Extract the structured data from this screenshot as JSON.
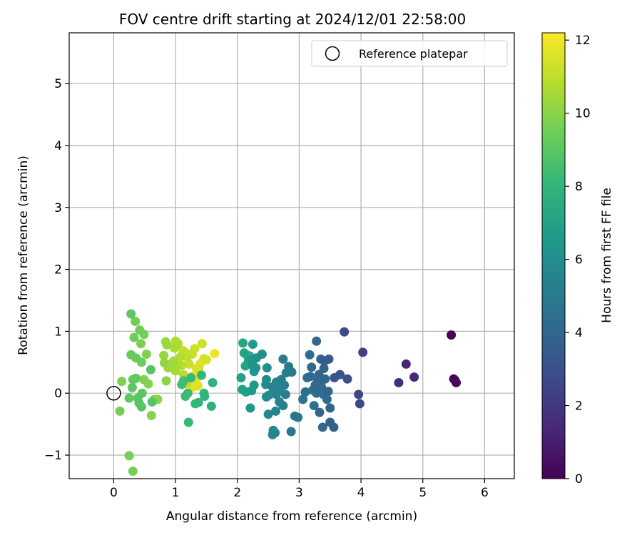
{
  "chart_data": {
    "type": "scatter",
    "title": "FOV centre drift starting at 2024/12/01 22:58:00",
    "xlabel": "Angular distance from reference (arcmin)",
    "ylabel": "Rotation from reference (arcmin)",
    "xlim": [
      -0.72,
      6.48
    ],
    "ylim": [
      -1.38,
      5.82
    ],
    "xticks": [
      0,
      1,
      2,
      3,
      4,
      5,
      6
    ],
    "xtick_labels": [
      "0",
      "1",
      "2",
      "3",
      "4",
      "5",
      "6"
    ],
    "yticks": [
      -1,
      0,
      1,
      2,
      3,
      4,
      5
    ],
    "ytick_labels": [
      "−1",
      "0",
      "1",
      "2",
      "3",
      "4",
      "5"
    ],
    "grid": true,
    "legend": {
      "position": "top-right",
      "entries": [
        "Reference platepar"
      ]
    },
    "colorbar": {
      "label": "Hours from first FF file",
      "range": [
        0,
        12.2
      ],
      "ticks": [
        0,
        2,
        4,
        6,
        8,
        10,
        12
      ],
      "tick_labels": [
        "0",
        "2",
        "4",
        "6",
        "8",
        "10",
        "12"
      ],
      "colormap": "viridis",
      "colors": [
        "#440154",
        "#482878",
        "#3e4989",
        "#31688e",
        "#26828e",
        "#1f9e89",
        "#35b779",
        "#6ece58",
        "#b5de2b",
        "#fde725"
      ]
    },
    "reference_point": {
      "x": 0,
      "y": 0,
      "series": "Reference platepar"
    },
    "series": [
      {
        "points": [
          [
            5.46,
            0.94,
            0.1
          ],
          [
            5.5,
            0.23,
            0.2
          ],
          [
            5.52,
            0.21,
            0.3
          ],
          [
            5.54,
            0.17,
            0.3
          ],
          [
            4.73,
            0.47,
            1.2
          ],
          [
            4.86,
            0.26,
            1.4
          ],
          [
            4.61,
            0.17,
            1.5
          ],
          [
            4.03,
            0.66,
            2.3
          ],
          [
            3.73,
            0.99,
            2.7
          ],
          [
            3.96,
            -0.02,
            2.6
          ],
          [
            3.98,
            -0.17,
            2.6
          ],
          [
            3.78,
            0.23,
            3.0
          ],
          [
            3.66,
            0.3,
            3.2
          ],
          [
            3.57,
            0.25,
            3.3
          ],
          [
            3.48,
            0.55,
            3.5
          ],
          [
            3.41,
            0.52,
            3.6
          ],
          [
            3.35,
            0.55,
            3.7
          ],
          [
            3.28,
            0.84,
            4.0
          ],
          [
            3.5,
            -0.47,
            3.8
          ],
          [
            3.56,
            -0.55,
            3.8
          ],
          [
            3.5,
            -0.24,
            3.9
          ],
          [
            3.38,
            -0.55,
            4.0
          ],
          [
            3.33,
            -0.31,
            4.0
          ],
          [
            3.47,
            0.03,
            4.0
          ],
          [
            3.42,
            0.23,
            4.0
          ],
          [
            3.32,
            0.3,
            4.1
          ],
          [
            3.26,
            0.13,
            4.1
          ],
          [
            3.2,
            0.42,
            4.2
          ],
          [
            3.18,
            0.27,
            4.3
          ],
          [
            3.17,
            0.62,
            4.4
          ],
          [
            3.13,
            0.25,
            4.4
          ],
          [
            3.36,
            0.1,
            4.2
          ],
          [
            3.45,
            -0.1,
            4.2
          ],
          [
            3.24,
            -0.2,
            4.5
          ],
          [
            3.1,
            0.02,
            4.5
          ],
          [
            3.06,
            -0.1,
            4.7
          ],
          [
            3.28,
            0.0,
            4.3
          ],
          [
            3.39,
            -0.02,
            4.3
          ],
          [
            3.3,
            0.2,
            4.2
          ],
          [
            3.4,
            0.4,
            4.0
          ],
          [
            3.22,
            0.05,
            4.4
          ],
          [
            2.93,
            -0.37,
            4.8
          ],
          [
            2.98,
            -0.39,
            4.8
          ],
          [
            2.87,
            -0.62,
            4.9
          ],
          [
            2.88,
            0.34,
            5.0
          ],
          [
            2.83,
            0.43,
            5.0
          ],
          [
            2.79,
            0.33,
            5.1
          ],
          [
            2.74,
            0.55,
            5.1
          ],
          [
            2.76,
            0.13,
            5.2
          ],
          [
            2.71,
            0.22,
            5.2
          ],
          [
            2.78,
            -0.02,
            5.3
          ],
          [
            2.74,
            -0.2,
            5.3
          ],
          [
            2.68,
            -0.14,
            5.4
          ],
          [
            2.63,
            -0.02,
            5.4
          ],
          [
            2.62,
            -0.29,
            5.5
          ],
          [
            2.58,
            -0.6,
            5.6
          ],
          [
            2.57,
            -0.67,
            5.6
          ],
          [
            2.61,
            -0.64,
            5.6
          ],
          [
            2.5,
            -0.34,
            5.7
          ],
          [
            2.57,
            0.1,
            5.6
          ],
          [
            2.63,
            0.18,
            5.6
          ],
          [
            2.68,
            0.05,
            5.5
          ],
          [
            2.51,
            -0.03,
            5.8
          ],
          [
            2.47,
            -0.06,
            5.8
          ],
          [
            2.46,
            0.14,
            5.9
          ],
          [
            2.47,
            0.22,
            5.9
          ],
          [
            2.48,
            0.41,
            6.0
          ],
          [
            2.4,
            0.63,
            6.1
          ],
          [
            2.31,
            0.57,
            6.2
          ],
          [
            2.25,
            0.45,
            6.3
          ],
          [
            2.3,
            0.41,
            6.3
          ],
          [
            2.27,
            0.35,
            6.4
          ],
          [
            2.23,
            0.53,
            6.4
          ],
          [
            2.21,
            -0.24,
            6.5
          ],
          [
            2.23,
            0.04,
            6.6
          ],
          [
            2.27,
            0.13,
            6.6
          ],
          [
            2.25,
            0.79,
            6.7
          ],
          [
            2.08,
            0.06,
            6.9
          ],
          [
            2.14,
            0.02,
            6.9
          ],
          [
            2.06,
            0.25,
            7.0
          ],
          [
            2.13,
            0.44,
            7.0
          ],
          [
            2.18,
            0.52,
            7.1
          ],
          [
            2.11,
            0.65,
            7.1
          ],
          [
            2.15,
            0.62,
            7.2
          ],
          [
            2.09,
            0.81,
            7.2
          ],
          [
            2.2,
            0.6,
            7.3
          ],
          [
            1.6,
            0.17,
            7.8
          ],
          [
            1.58,
            -0.21,
            7.8
          ],
          [
            1.47,
            -0.05,
            7.9
          ],
          [
            1.46,
            0.0,
            8.0
          ],
          [
            1.42,
            0.29,
            8.0
          ],
          [
            1.37,
            -0.15,
            8.1
          ],
          [
            1.32,
            -0.17,
            8.1
          ],
          [
            1.25,
            0.25,
            8.2
          ],
          [
            1.21,
            -0.47,
            8.2
          ],
          [
            1.2,
            0.0,
            8.3
          ],
          [
            1.16,
            -0.05,
            8.3
          ],
          [
            1.1,
            0.14,
            8.4
          ],
          [
            1.13,
            0.2,
            8.4
          ],
          [
            0.28,
            1.28,
            9.1
          ],
          [
            0.62,
            -0.14,
            8.9
          ],
          [
            0.6,
            0.38,
            8.9
          ],
          [
            0.45,
            -0.22,
            9.0
          ],
          [
            0.41,
            -0.16,
            9.0
          ],
          [
            0.39,
            -0.08,
            9.0
          ],
          [
            0.46,
            0.0,
            9.0
          ],
          [
            0.3,
            0.09,
            9.1
          ],
          [
            0.25,
            -0.08,
            9.1
          ],
          [
            0.36,
            0.24,
            9.2
          ],
          [
            0.31,
            0.22,
            9.2
          ],
          [
            0.28,
            0.62,
            9.3
          ],
          [
            0.36,
            0.57,
            9.3
          ],
          [
            0.45,
            0.5,
            9.4
          ],
          [
            0.33,
            0.9,
            9.4
          ],
          [
            0.42,
            1.02,
            9.5
          ],
          [
            0.35,
            1.16,
            9.5
          ],
          [
            0.49,
            0.95,
            9.6
          ],
          [
            0.1,
            -0.29,
            9.6
          ],
          [
            0.25,
            -1.01,
            9.6
          ],
          [
            0.31,
            -1.26,
            9.6
          ],
          [
            0.13,
            0.19,
            9.7
          ],
          [
            0.44,
            0.8,
            9.7
          ],
          [
            0.53,
            0.63,
            9.8
          ],
          [
            0.49,
            0.22,
            9.8
          ],
          [
            0.56,
            0.15,
            9.9
          ],
          [
            0.61,
            -0.36,
            9.9
          ],
          [
            0.66,
            -0.1,
            10.0
          ],
          [
            0.71,
            -0.1,
            10.0
          ],
          [
            0.85,
            0.2,
            10.1
          ],
          [
            0.82,
            0.49,
            10.2
          ],
          [
            0.81,
            0.61,
            10.2
          ],
          [
            0.86,
            0.78,
            10.3
          ],
          [
            0.84,
            0.83,
            10.3
          ],
          [
            0.88,
            0.41,
            10.4
          ],
          [
            0.93,
            0.47,
            10.4
          ],
          [
            0.97,
            0.52,
            10.5
          ],
          [
            1.0,
            0.36,
            10.5
          ],
          [
            1.03,
            0.43,
            10.6
          ],
          [
            0.98,
            0.73,
            10.6
          ],
          [
            1.0,
            0.84,
            10.7
          ],
          [
            1.04,
            0.8,
            10.7
          ],
          [
            1.08,
            0.59,
            10.8
          ],
          [
            1.05,
            0.54,
            10.8
          ],
          [
            1.1,
            0.45,
            10.9
          ],
          [
            1.13,
            0.3,
            10.9
          ],
          [
            1.18,
            0.15,
            11.0
          ],
          [
            1.19,
            0.58,
            11.0
          ],
          [
            1.12,
            0.69,
            11.1
          ],
          [
            1.17,
            0.65,
            11.1
          ],
          [
            1.22,
            0.47,
            11.2
          ],
          [
            1.27,
            0.63,
            11.2
          ],
          [
            1.31,
            0.72,
            11.3
          ],
          [
            1.43,
            0.8,
            11.3
          ],
          [
            1.46,
            0.56,
            11.4
          ],
          [
            1.5,
            0.54,
            11.4
          ],
          [
            1.38,
            0.43,
            11.5
          ],
          [
            1.34,
            0.4,
            11.5
          ],
          [
            1.3,
            0.22,
            11.6
          ],
          [
            1.35,
            0.13,
            11.6
          ],
          [
            1.29,
            0.1,
            11.7
          ],
          [
            1.33,
            0.3,
            11.7
          ],
          [
            1.36,
            0.12,
            11.8
          ],
          [
            1.38,
            0.35,
            11.8
          ],
          [
            1.4,
            0.48,
            11.9
          ],
          [
            1.63,
            0.64,
            11.9
          ],
          [
            1.32,
            0.16,
            12.0
          ],
          [
            1.28,
            0.28,
            12.0
          ],
          [
            1.34,
            0.24,
            12.1
          ],
          [
            1.3,
            0.26,
            12.1
          ]
        ]
      }
    ]
  }
}
